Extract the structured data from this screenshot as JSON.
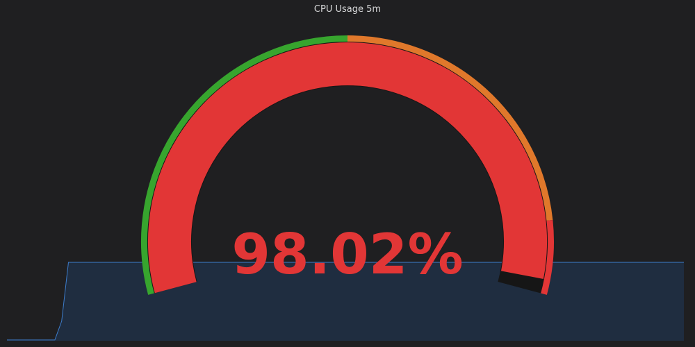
{
  "panel": {
    "title": "CPU Usage 5m"
  },
  "gauge": {
    "value": 98.02,
    "display": "98.02%",
    "min": 0,
    "max": 100,
    "thresholds": [
      {
        "from": 0,
        "to": 50,
        "color": "#37a52e"
      },
      {
        "from": 50,
        "to": 90,
        "color": "#e0782b"
      },
      {
        "from": 90,
        "to": 100,
        "color": "#e23636"
      }
    ],
    "value_color": "#e23636",
    "track_color": "#1f1f21"
  },
  "sparkline": {
    "line_color": "#3d7dcc",
    "fill_color": "#1f2d40",
    "values": [
      1,
      1,
      1,
      1,
      1,
      1,
      1,
      1,
      25,
      100,
      100,
      100,
      100,
      100,
      100,
      100,
      100,
      100,
      100,
      100,
      100,
      100,
      100,
      100,
      100,
      100,
      100,
      100,
      100,
      100,
      100,
      100,
      100,
      100,
      100,
      100,
      100,
      100,
      100,
      100,
      100,
      100,
      100,
      100,
      100,
      100,
      100,
      100,
      100,
      100,
      100,
      100,
      100,
      100,
      100,
      100,
      100,
      100,
      100,
      100,
      100,
      100,
      100,
      100,
      100,
      100,
      100,
      100,
      100,
      100,
      100,
      100,
      100,
      100,
      100,
      100,
      100,
      100,
      100,
      100,
      100,
      100,
      100,
      100,
      100,
      100,
      100,
      100,
      100,
      100,
      100,
      100,
      100,
      100,
      100,
      100,
      100,
      100,
      100,
      100
    ],
    "min": 0,
    "max": 100
  }
}
